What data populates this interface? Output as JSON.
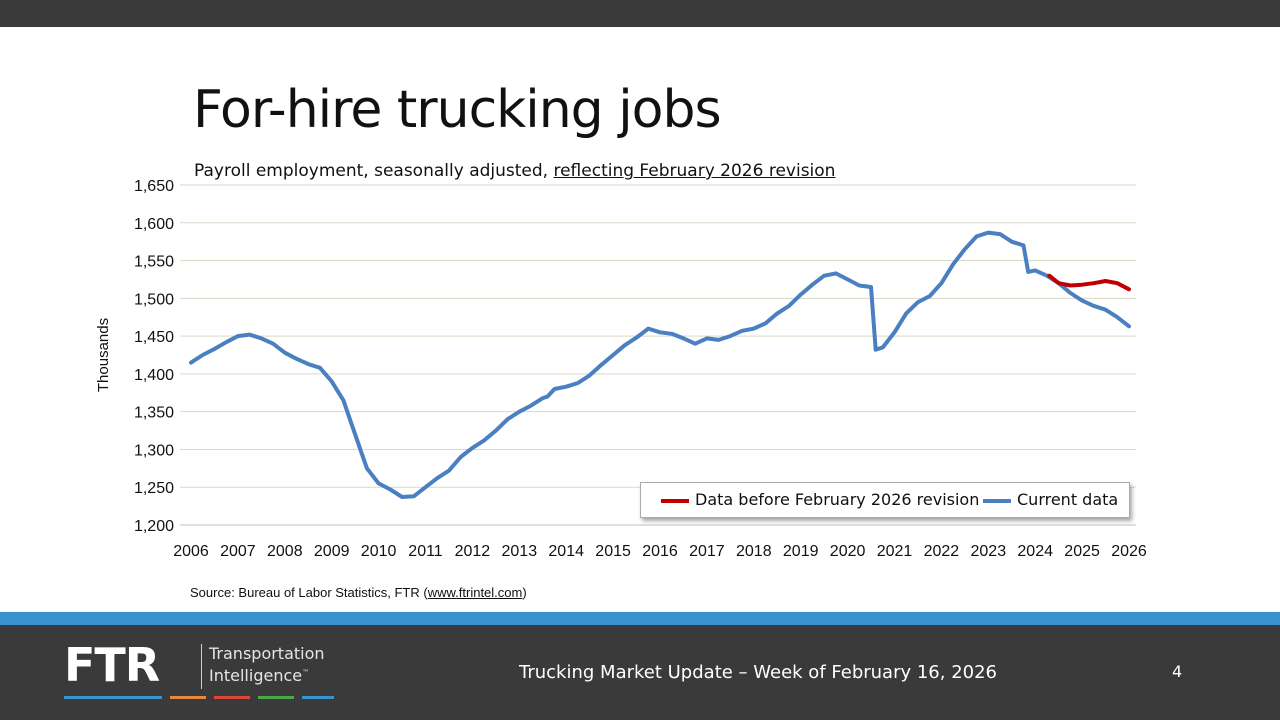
{
  "slide": {
    "title": "For-hire trucking jobs",
    "subtitle_prefix": "Payroll employment, seasonally adjusted, ",
    "subtitle_link": "reflecting February 2026 revision",
    "source_prefix": "Source: Bureau of Labor Statistics, FTR (",
    "source_link": "www.ftrintel.com",
    "source_suffix": ")",
    "page_number": "4"
  },
  "footer": {
    "logo_text": "FTR",
    "logo_line1": "Transportation",
    "logo_line2": "Intelligence",
    "logo_tm": "™",
    "caption": "Trucking Market Update – Week of February 16, 2026"
  },
  "colors": {
    "current": "#4a7fc1",
    "before_revision": "#c00000",
    "topbar": "#3a3a3a",
    "footer_band": "#3a93d0",
    "logo_stripes": [
      "#3a93d0",
      "#e8883a",
      "#d9463c",
      "#4aa84a",
      "#3a93d0"
    ]
  },
  "chart_data": {
    "type": "line",
    "ylabel": "Thousands",
    "ylim": [
      1200,
      1650
    ],
    "yticks": [
      1200,
      1250,
      1300,
      1350,
      1400,
      1450,
      1500,
      1550,
      1600,
      1650
    ],
    "ytick_labels": [
      "1,200",
      "1,250",
      "1,300",
      "1,350",
      "1,400",
      "1,450",
      "1,500",
      "1,550",
      "1,600",
      "1,650"
    ],
    "xlim": [
      2006,
      2026
    ],
    "xticks": [
      "2006",
      "2007",
      "2008",
      "2009",
      "2010",
      "2011",
      "2012",
      "2013",
      "2014",
      "2015",
      "2016",
      "2017",
      "2018",
      "2019",
      "2020",
      "2021",
      "2022",
      "2023",
      "2024",
      "2025",
      "2026"
    ],
    "grid": "horizontal",
    "legend_position": "bottom-right",
    "series": [
      {
        "name": "Current data",
        "color": "#4a7fc1",
        "points": [
          [
            2006.0,
            1415
          ],
          [
            2006.25,
            1425
          ],
          [
            2006.5,
            1433
          ],
          [
            2006.75,
            1442
          ],
          [
            2007.0,
            1450
          ],
          [
            2007.25,
            1452
          ],
          [
            2007.5,
            1447
          ],
          [
            2007.75,
            1440
          ],
          [
            2008.0,
            1428
          ],
          [
            2008.25,
            1420
          ],
          [
            2008.5,
            1413
          ],
          [
            2008.75,
            1408
          ],
          [
            2009.0,
            1390
          ],
          [
            2009.25,
            1365
          ],
          [
            2009.5,
            1320
          ],
          [
            2009.75,
            1275
          ],
          [
            2010.0,
            1255
          ],
          [
            2010.25,
            1247
          ],
          [
            2010.5,
            1237
          ],
          [
            2010.75,
            1238
          ],
          [
            2011.0,
            1250
          ],
          [
            2011.25,
            1262
          ],
          [
            2011.5,
            1272
          ],
          [
            2011.75,
            1290
          ],
          [
            2012.0,
            1302
          ],
          [
            2012.25,
            1312
          ],
          [
            2012.5,
            1325
          ],
          [
            2012.75,
            1340
          ],
          [
            2013.0,
            1350
          ],
          [
            2013.25,
            1358
          ],
          [
            2013.5,
            1368
          ],
          [
            2013.6,
            1370
          ],
          [
            2013.75,
            1380
          ],
          [
            2014.0,
            1383
          ],
          [
            2014.25,
            1388
          ],
          [
            2014.5,
            1398
          ],
          [
            2014.75,
            1412
          ],
          [
            2015.0,
            1425
          ],
          [
            2015.25,
            1438
          ],
          [
            2015.5,
            1448
          ],
          [
            2015.75,
            1460
          ],
          [
            2016.0,
            1455
          ],
          [
            2016.25,
            1453
          ],
          [
            2016.5,
            1447
          ],
          [
            2016.75,
            1440
          ],
          [
            2017.0,
            1447
          ],
          [
            2017.25,
            1445
          ],
          [
            2017.5,
            1450
          ],
          [
            2017.75,
            1457
          ],
          [
            2018.0,
            1460
          ],
          [
            2018.25,
            1467
          ],
          [
            2018.5,
            1480
          ],
          [
            2018.75,
            1490
          ],
          [
            2019.0,
            1505
          ],
          [
            2019.25,
            1518
          ],
          [
            2019.5,
            1530
          ],
          [
            2019.75,
            1533
          ],
          [
            2020.0,
            1525
          ],
          [
            2020.25,
            1517
          ],
          [
            2020.5,
            1515
          ],
          [
            2020.6,
            1432
          ],
          [
            2020.75,
            1435
          ],
          [
            2021.0,
            1455
          ],
          [
            2021.25,
            1480
          ],
          [
            2021.5,
            1495
          ],
          [
            2021.75,
            1503
          ],
          [
            2022.0,
            1520
          ],
          [
            2022.25,
            1545
          ],
          [
            2022.5,
            1565
          ],
          [
            2022.75,
            1582
          ],
          [
            2023.0,
            1587
          ],
          [
            2023.25,
            1585
          ],
          [
            2023.5,
            1575
          ],
          [
            2023.75,
            1570
          ],
          [
            2023.85,
            1535
          ],
          [
            2024.0,
            1537
          ],
          [
            2024.25,
            1530
          ],
          [
            2024.5,
            1520
          ],
          [
            2024.75,
            1507
          ],
          [
            2025.0,
            1497
          ],
          [
            2025.25,
            1490
          ],
          [
            2025.5,
            1485
          ],
          [
            2025.75,
            1475
          ],
          [
            2026.0,
            1463
          ]
        ]
      },
      {
        "name": "Data before February 2026 revision",
        "color": "#c00000",
        "points": [
          [
            2024.3,
            1530
          ],
          [
            2024.5,
            1520
          ],
          [
            2024.75,
            1517
          ],
          [
            2025.0,
            1518
          ],
          [
            2025.25,
            1520
          ],
          [
            2025.5,
            1523
          ],
          [
            2025.75,
            1520
          ],
          [
            2026.0,
            1512
          ]
        ]
      }
    ]
  }
}
